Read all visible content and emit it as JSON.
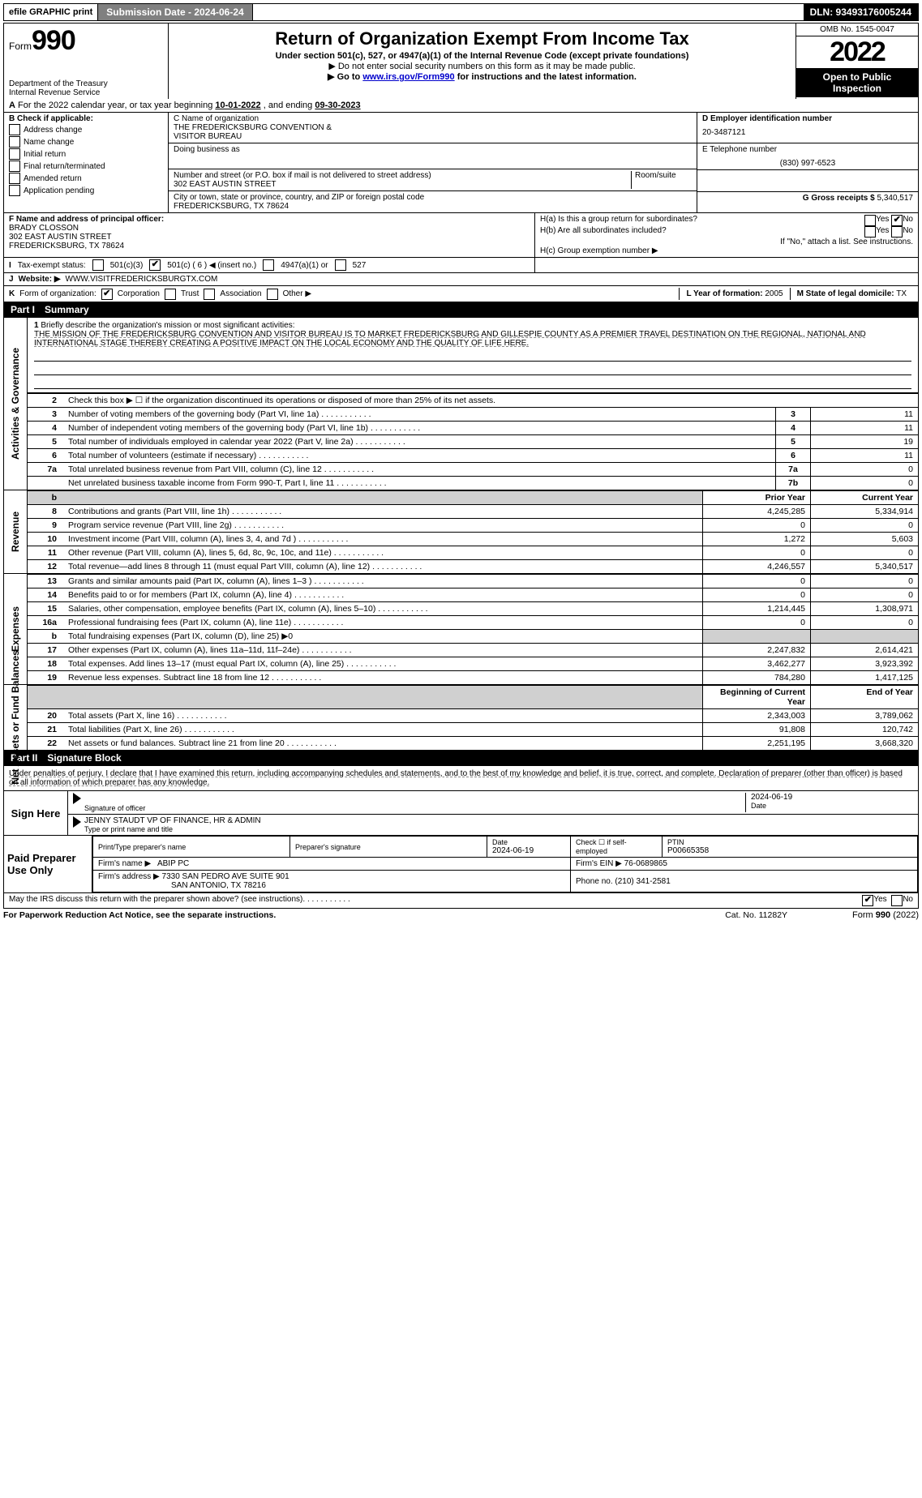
{
  "top_bar": {
    "efile": "efile GRAPHIC print",
    "submission": "Submission Date - 2024-06-24",
    "dln": "DLN: 93493176005244"
  },
  "header": {
    "form_prefix": "Form",
    "form_number": "990",
    "title": "Return of Organization Exempt From Income Tax",
    "subtitle": "Under section 501(c), 527, or 4947(a)(1) of the Internal Revenue Code (except private foundations)",
    "note1": "▶ Do not enter social security numbers on this form as it may be made public.",
    "note2_pre": "▶ Go to ",
    "note2_link": "www.irs.gov/Form990",
    "note2_post": " for instructions and the latest information.",
    "dept": "Department of the Treasury",
    "irs": "Internal Revenue Service",
    "omb": "OMB No. 1545-0047",
    "year": "2022",
    "inspect": "Open to Public Inspection"
  },
  "row_a": {
    "label_a": "A",
    "text": "For the 2022 calendar year, or tax year beginning ",
    "begin": "10-01-2022",
    "mid": " , and ending ",
    "end": "09-30-2023"
  },
  "section_b": {
    "label": "B Check if applicable:",
    "items": [
      "Address change",
      "Name change",
      "Initial return",
      "Final return/terminated",
      "Amended return",
      "Application pending"
    ]
  },
  "section_c": {
    "name_lbl": "C Name of organization",
    "name1": "THE FREDERICKSBURG CONVENTION &",
    "name2": "VISITOR BUREAU",
    "dba_lbl": "Doing business as",
    "addr_lbl": "Number and street (or P.O. box if mail is not delivered to street address)",
    "room_lbl": "Room/suite",
    "addr": "302 EAST AUSTIN STREET",
    "city_lbl": "City or town, state or province, country, and ZIP or foreign postal code",
    "city": "FREDERICKSBURG, TX  78624"
  },
  "section_d": {
    "lbl": "D Employer identification number",
    "val": "20-3487121"
  },
  "section_e": {
    "lbl": "E Telephone number",
    "val": "(830) 997-6523"
  },
  "section_g": {
    "lbl": "G Gross receipts $",
    "val": "5,340,517"
  },
  "section_f": {
    "lbl": "F Name and address of principal officer:",
    "name": "BRADY CLOSSON",
    "addr1": "302 EAST AUSTIN STREET",
    "addr2": "FREDERICKSBURG, TX  78624"
  },
  "section_h": {
    "ha": "H(a)  Is this a group return for subordinates?",
    "hb": "H(b)  Are all subordinates included?",
    "hb_note": "If \"No,\" attach a list. See instructions.",
    "hc": "H(c)  Group exemption number ▶",
    "yes": "Yes",
    "no": "No"
  },
  "section_i": {
    "lbl": "I",
    "text": "Tax-exempt status:",
    "opt1": "501(c)(3)",
    "opt2": "501(c) ( 6 ) ◀ (insert no.)",
    "opt3": "4947(a)(1) or",
    "opt4": "527"
  },
  "section_j": {
    "lbl": "J",
    "text": "Website: ▶",
    "val": "WWW.VISITFREDERICKSBURGTX.COM"
  },
  "section_k": {
    "lbl": "K",
    "text": "Form of organization:",
    "opts": [
      "Corporation",
      "Trust",
      "Association",
      "Other ▶"
    ]
  },
  "section_l": {
    "lbl": "L Year of formation:",
    "val": "2005"
  },
  "section_m": {
    "lbl": "M State of legal domicile:",
    "val": "TX"
  },
  "part1": {
    "num": "Part I",
    "title": "Summary"
  },
  "mission": {
    "line1_lbl": "1",
    "line1_text": "Briefly describe the organization's mission or most significant activities:",
    "body": "THE MISSION OF THE FREDERICKSBURG CONVENTION AND VISITOR BUREAU IS TO MARKET FREDERICKSBURG AND GILLESPIE COUNTY AS A PREMIER TRAVEL DESTINATION ON THE REGIONAL, NATIONAL AND INTERNATIONAL STAGE THEREBY CREATING A POSITIVE IMPACT ON THE LOCAL ECONOMY AND THE QUALITY OF LIFE HERE."
  },
  "gov_rows": [
    {
      "n": "2",
      "desc": "Check this box ▶ ☐ if the organization discontinued its operations or disposed of more than 25% of its net assets.",
      "ref": "",
      "val": ""
    },
    {
      "n": "3",
      "desc": "Number of voting members of the governing body (Part VI, line 1a)",
      "ref": "3",
      "val": "11"
    },
    {
      "n": "4",
      "desc": "Number of independent voting members of the governing body (Part VI, line 1b)",
      "ref": "4",
      "val": "11"
    },
    {
      "n": "5",
      "desc": "Total number of individuals employed in calendar year 2022 (Part V, line 2a)",
      "ref": "5",
      "val": "19"
    },
    {
      "n": "6",
      "desc": "Total number of volunteers (estimate if necessary)",
      "ref": "6",
      "val": "11"
    },
    {
      "n": "7a",
      "desc": "Total unrelated business revenue from Part VIII, column (C), line 12",
      "ref": "7a",
      "val": "0"
    },
    {
      "n": "",
      "desc": "Net unrelated business taxable income from Form 990-T, Part I, line 11",
      "ref": "7b",
      "val": "0"
    }
  ],
  "col_hdr_b": "b",
  "prior_year": "Prior Year",
  "current_year": "Current Year",
  "rev_rows": [
    {
      "n": "8",
      "desc": "Contributions and grants (Part VIII, line 1h)",
      "py": "4,245,285",
      "cy": "5,334,914"
    },
    {
      "n": "9",
      "desc": "Program service revenue (Part VIII, line 2g)",
      "py": "0",
      "cy": "0"
    },
    {
      "n": "10",
      "desc": "Investment income (Part VIII, column (A), lines 3, 4, and 7d )",
      "py": "1,272",
      "cy": "5,603"
    },
    {
      "n": "11",
      "desc": "Other revenue (Part VIII, column (A), lines 5, 6d, 8c, 9c, 10c, and 11e)",
      "py": "0",
      "cy": "0"
    },
    {
      "n": "12",
      "desc": "Total revenue—add lines 8 through 11 (must equal Part VIII, column (A), line 12)",
      "py": "4,246,557",
      "cy": "5,340,517"
    }
  ],
  "exp_rows": [
    {
      "n": "13",
      "desc": "Grants and similar amounts paid (Part IX, column (A), lines 1–3 )",
      "py": "0",
      "cy": "0"
    },
    {
      "n": "14",
      "desc": "Benefits paid to or for members (Part IX, column (A), line 4)",
      "py": "0",
      "cy": "0"
    },
    {
      "n": "15",
      "desc": "Salaries, other compensation, employee benefits (Part IX, column (A), lines 5–10)",
      "py": "1,214,445",
      "cy": "1,308,971"
    },
    {
      "n": "16a",
      "desc": "Professional fundraising fees (Part IX, column (A), line 11e)",
      "py": "0",
      "cy": "0"
    },
    {
      "n": "b",
      "desc": "Total fundraising expenses (Part IX, column (D), line 25) ▶0",
      "py": "",
      "cy": "",
      "grey": true
    },
    {
      "n": "17",
      "desc": "Other expenses (Part IX, column (A), lines 11a–11d, 11f–24e)",
      "py": "2,247,832",
      "cy": "2,614,421"
    },
    {
      "n": "18",
      "desc": "Total expenses. Add lines 13–17 (must equal Part IX, column (A), line 25)",
      "py": "3,462,277",
      "cy": "3,923,392"
    },
    {
      "n": "19",
      "desc": "Revenue less expenses. Subtract line 18 from line 12",
      "py": "784,280",
      "cy": "1,417,125"
    }
  ],
  "net_hdr_py": "Beginning of Current Year",
  "net_hdr_cy": "End of Year",
  "net_rows": [
    {
      "n": "20",
      "desc": "Total assets (Part X, line 16)",
      "py": "2,343,003",
      "cy": "3,789,062"
    },
    {
      "n": "21",
      "desc": "Total liabilities (Part X, line 26)",
      "py": "91,808",
      "cy": "120,742"
    },
    {
      "n": "22",
      "desc": "Net assets or fund balances. Subtract line 21 from line 20",
      "py": "2,251,195",
      "cy": "3,668,320"
    }
  ],
  "side_labels": {
    "gov": "Activities & Governance",
    "rev": "Revenue",
    "exp": "Expenses",
    "net": "Net Assets or Fund Balances"
  },
  "part2": {
    "num": "Part II",
    "title": "Signature Block"
  },
  "penalties": "Under penalties of perjury, I declare that I have examined this return, including accompanying schedules and statements, and to the best of my knowledge and belief, it is true, correct, and complete. Declaration of preparer (other than officer) is based on all information of which preparer has any knowledge.",
  "sign_here": "Sign Here",
  "sig_officer_lbl": "Signature of officer",
  "sig_date": "2024-06-19",
  "sig_date_lbl": "Date",
  "sig_name": "JENNY STAUDT  VP OF FINANCE, HR & ADMIN",
  "sig_name_lbl": "Type or print name and title",
  "paid_prep": "Paid Preparer Use Only",
  "prep": {
    "name_lbl": "Print/Type preparer's name",
    "sig_lbl": "Preparer's signature",
    "date_lbl": "Date",
    "date": "2024-06-19",
    "check_lbl": "Check ☐ if self-employed",
    "ptin_lbl": "PTIN",
    "ptin": "P00665358",
    "firm_name_lbl": "Firm's name    ▶",
    "firm_name": "ABIP PC",
    "firm_ein_lbl": "Firm's EIN ▶",
    "firm_ein": "76-0689865",
    "firm_addr_lbl": "Firm's address ▶",
    "firm_addr1": "7330 SAN PEDRO AVE SUITE 901",
    "firm_addr2": "SAN ANTONIO, TX  78216",
    "phone_lbl": "Phone no.",
    "phone": "(210) 341-2581"
  },
  "may_irs": "May the IRS discuss this return with the preparer shown above? (see instructions)",
  "footer": {
    "pra": "For Paperwork Reduction Act Notice, see the separate instructions.",
    "cat": "Cat. No. 11282Y",
    "form": "Form 990 (2022)"
  }
}
